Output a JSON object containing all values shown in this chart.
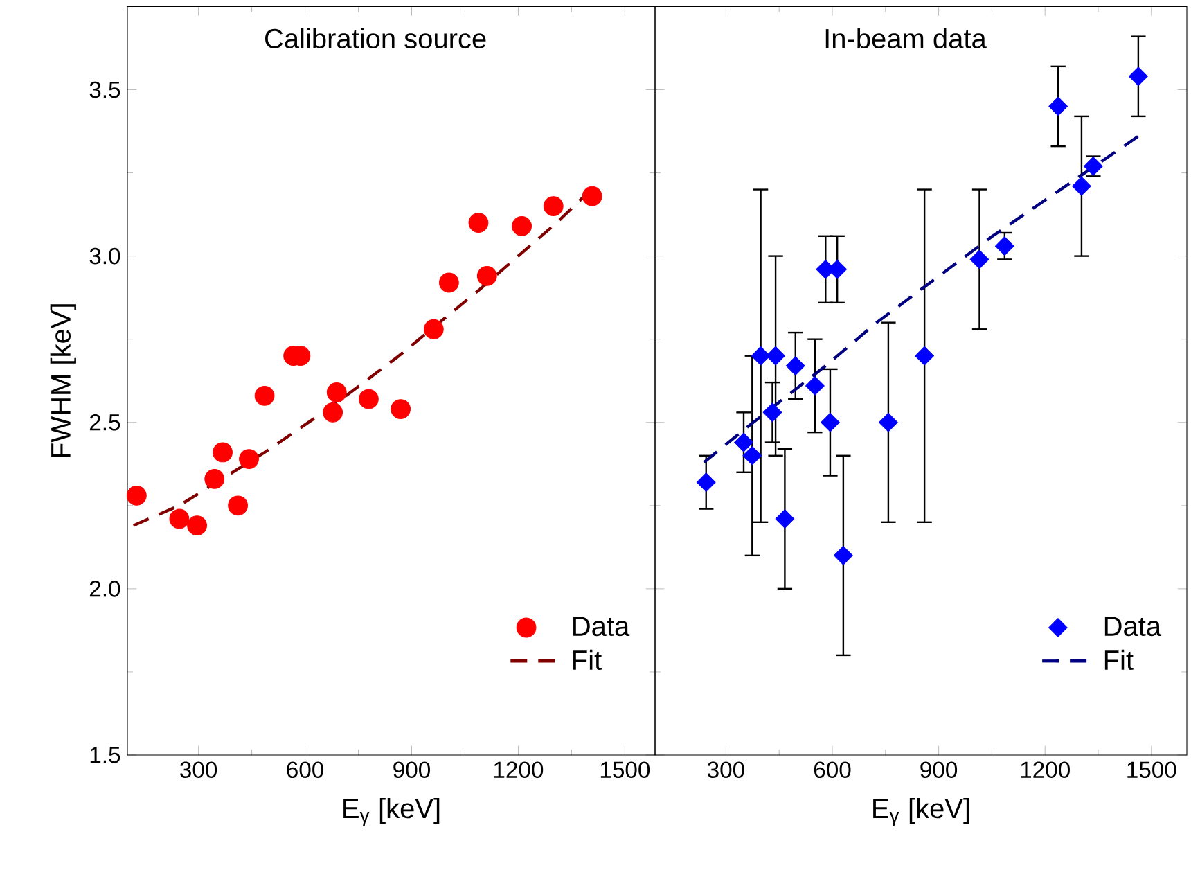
{
  "chart_data": [
    {
      "type": "scatter",
      "title": "Calibration source",
      "xlabel": "E$_{γ}$ [keV]",
      "ylabel": "FWHM [keV]",
      "legend": "bottom right",
      "xlim": [
        100,
        1585
      ],
      "ylim": [
        1.5,
        3.75
      ],
      "xticks": [
        300,
        600,
        900,
        1200,
        1500
      ],
      "yticks": [
        1.5,
        {
          "value": 2.0,
          "label": "2.0"
        },
        2.5,
        {
          "value": 3.0,
          "label": "3.0"
        },
        3.5
      ],
      "series": [
        {
          "name": "Data",
          "marker": "circle",
          "color": "#ff0000",
          "x": [
            126,
            246,
            296,
            345,
            368,
            411,
            442,
            486,
            567,
            587,
            678,
            689,
            779,
            869,
            962,
            1005,
            1088,
            1112,
            1210,
            1299,
            1408
          ],
          "values": [
            2.28,
            2.21,
            2.19,
            2.33,
            2.41,
            2.25,
            2.39,
            2.58,
            2.7,
            2.7,
            2.53,
            2.59,
            2.57,
            2.54,
            2.78,
            2.92,
            3.1,
            2.94,
            3.09,
            3.15,
            3.18
          ]
        },
        {
          "name": "Fit",
          "type": "line",
          "color": "#800000",
          "line_style": "dashed",
          "x": [
            117,
            246,
            486,
            678,
            864,
            1092,
            1308,
            1386
          ],
          "values": [
            2.19,
            2.25,
            2.41,
            2.55,
            2.7,
            2.9,
            3.1,
            3.18
          ]
        }
      ]
    },
    {
      "type": "scatter",
      "title": "In-beam data",
      "xlabel": "E$_{γ}$ [keV]",
      "legend": "bottom right",
      "tick_labels": "x",
      "xlim": [
        100,
        1600
      ],
      "ylim": [
        1.5,
        3.75
      ],
      "xticks": [
        300,
        600,
        900,
        1200,
        1500
      ],
      "yticks": [
        1.5,
        2,
        2.5,
        3,
        3.5
      ],
      "series": [
        {
          "name": "Data",
          "marker": "diamond",
          "color": "#0000ff",
          "x": [
            244,
            350,
            374,
            398,
            431,
            440,
            466,
            496,
            551,
            581,
            594,
            614,
            631,
            758,
            860,
            1015,
            1086,
            1237,
            1303,
            1336,
            1463
          ],
          "values": [
            2.32,
            2.44,
            2.4,
            2.7,
            2.53,
            2.7,
            2.21,
            2.67,
            2.61,
            2.96,
            2.5,
            2.96,
            2.1,
            2.5,
            2.7,
            2.99,
            3.03,
            3.45,
            3.21,
            3.27,
            3.54
          ],
          "errors": [
            0.08,
            0.09,
            0.3,
            0.5,
            0.09,
            0.3,
            0.21,
            0.1,
            0.14,
            0.1,
            0.16,
            0.1,
            0.3,
            0.3,
            0.5,
            0.21,
            0.04,
            0.12,
            0.21,
            0.03,
            0.12
          ]
        },
        {
          "name": "Fit",
          "type": "line",
          "color": "#000080",
          "line_style": "dashed",
          "x": [
            238,
            365,
            581,
            725,
            1052,
            1463
          ],
          "values": [
            2.38,
            2.49,
            2.67,
            2.8,
            3.06,
            3.36
          ]
        }
      ]
    }
  ]
}
